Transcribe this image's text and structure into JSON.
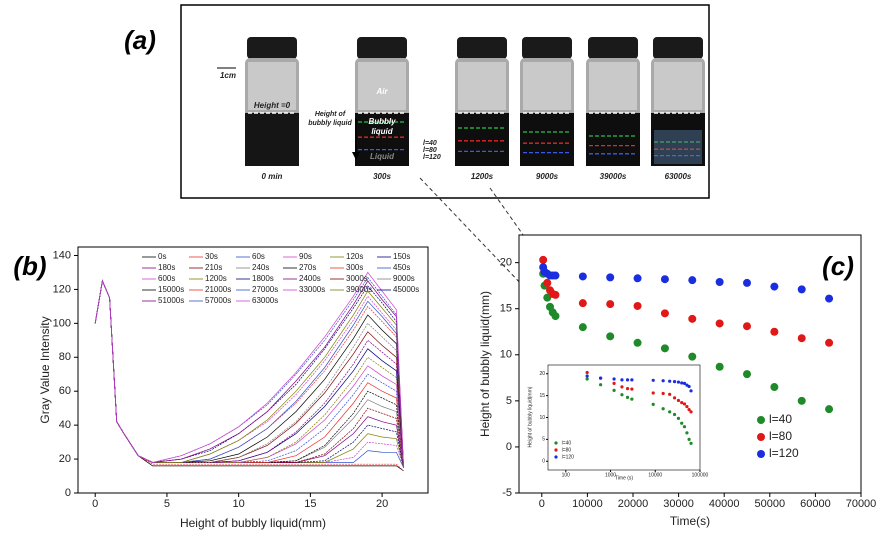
{
  "panel_a": {
    "label": "(a)",
    "scale": "1cm",
    "zero": "Height =0",
    "height_label": [
      "Height of",
      "bubbly liquid"
    ],
    "air": "Air",
    "bubbly": [
      "Bubbly",
      "liquid"
    ],
    "liquid": "Liquid",
    "levels": [
      "l=40",
      "l=80",
      "l=120"
    ],
    "captions": [
      "0 min",
      "300s",
      "1200s",
      "9000s",
      "39000s",
      "63000s"
    ]
  },
  "chart_data": [
    {
      "type": "line",
      "label": "(b)",
      "xlabel": "Height of bubbly liquid(mm)",
      "ylabel": "Gray Value Intensity",
      "x": [
        0,
        0.5,
        1,
        1.5,
        2,
        3,
        4,
        6,
        8,
        10,
        12,
        14,
        16,
        18,
        19,
        20,
        21,
        21.5
      ],
      "xlim": [
        -1.2,
        23.2
      ],
      "xticks": [
        0,
        5,
        10,
        15,
        20
      ],
      "ylim": [
        0,
        145
      ],
      "yticks": [
        0,
        20,
        40,
        60,
        80,
        100,
        120,
        140
      ],
      "legend": "upper center",
      "series": [
        {
          "name": "0s",
          "color": "#000000",
          "values": [
            100,
            125,
            115,
            42,
            35,
            22,
            16,
            16,
            16,
            16,
            16,
            16,
            16,
            16,
            16,
            16,
            16,
            13
          ]
        },
        {
          "name": "30s",
          "color": "#e8312a",
          "values": [
            100,
            125,
            115,
            42,
            35,
            22,
            17,
            17,
            17,
            17,
            17,
            17,
            17,
            17,
            17,
            17,
            17,
            13
          ]
        },
        {
          "name": "60s",
          "color": "#3050d0",
          "values": [
            100,
            125,
            115,
            42,
            35,
            22,
            18,
            18,
            18,
            18,
            18,
            18,
            18,
            18,
            25,
            24,
            24,
            15
          ]
        },
        {
          "name": "90s",
          "color": "#d040d0",
          "values": [
            100,
            125,
            115,
            42,
            35,
            22,
            18,
            18,
            18,
            18,
            18,
            18,
            18,
            21,
            30,
            29,
            28,
            15
          ]
        },
        {
          "name": "120s",
          "color": "#808000",
          "values": [
            100,
            125,
            115,
            42,
            35,
            22,
            18,
            18,
            18,
            18,
            18,
            18,
            18,
            26,
            35,
            33,
            32,
            15
          ]
        },
        {
          "name": "150s",
          "color": "#000080",
          "values": [
            100,
            125,
            115,
            42,
            35,
            22,
            18,
            18,
            18,
            18,
            18,
            18,
            19,
            30,
            40,
            38,
            36,
            15
          ]
        },
        {
          "name": "180s",
          "color": "#800080",
          "values": [
            100,
            125,
            115,
            42,
            35,
            22,
            18,
            18,
            18,
            18,
            18,
            18,
            22,
            35,
            45,
            42,
            40,
            15
          ]
        },
        {
          "name": "210s",
          "color": "#800000",
          "values": [
            100,
            125,
            115,
            42,
            35,
            22,
            18,
            18,
            18,
            18,
            18,
            18,
            23,
            38,
            50,
            47,
            44,
            15
          ]
        },
        {
          "name": "240s",
          "color": "#808080",
          "values": [
            100,
            125,
            115,
            42,
            35,
            22,
            18,
            18,
            18,
            18,
            18,
            19,
            27,
            44,
            55,
            51,
            48,
            15
          ]
        },
        {
          "name": "270s",
          "color": "#000000",
          "values": [
            100,
            125,
            115,
            42,
            35,
            22,
            18,
            18,
            18,
            18,
            18,
            19,
            28,
            47,
            60,
            56,
            52,
            15
          ]
        },
        {
          "name": "300s",
          "color": "#e8312a",
          "values": [
            100,
            125,
            115,
            42,
            35,
            22,
            18,
            18,
            18,
            18,
            18,
            22,
            33,
            53,
            65,
            60,
            56,
            15
          ]
        },
        {
          "name": "450s",
          "color": "#3050d0",
          "values": [
            100,
            125,
            115,
            42,
            35,
            22,
            18,
            18,
            18,
            18,
            19,
            25,
            38,
            58,
            70,
            65,
            60,
            15
          ]
        },
        {
          "name": "600s",
          "color": "#d040d0",
          "values": [
            100,
            125,
            115,
            42,
            35,
            22,
            18,
            18,
            18,
            18,
            21,
            29,
            43,
            63,
            75,
            69,
            64,
            15
          ]
        },
        {
          "name": "1200s",
          "color": "#808000",
          "values": [
            100,
            125,
            115,
            42,
            35,
            22,
            18,
            18,
            18,
            18,
            21,
            30,
            46,
            67,
            80,
            74,
            68,
            15
          ]
        },
        {
          "name": "1800s",
          "color": "#000080",
          "values": [
            100,
            125,
            115,
            42,
            35,
            22,
            18,
            18,
            18,
            19,
            24,
            35,
            51,
            72,
            85,
            78,
            72,
            15
          ]
        },
        {
          "name": "2400s",
          "color": "#800080",
          "values": [
            100,
            125,
            115,
            42,
            35,
            22,
            18,
            18,
            18,
            19,
            24,
            36,
            53,
            76,
            90,
            83,
            76,
            15
          ]
        },
        {
          "name": "3000s",
          "color": "#800000",
          "values": [
            100,
            125,
            115,
            42,
            35,
            22,
            18,
            18,
            18,
            21,
            28,
            41,
            59,
            82,
            95,
            87,
            80,
            15
          ]
        },
        {
          "name": "9000s",
          "color": "#808080",
          "values": [
            100,
            125,
            115,
            42,
            35,
            22,
            18,
            18,
            18,
            21,
            29,
            42,
            61,
            86,
            100,
            92,
            84,
            15
          ]
        },
        {
          "name": "15000s",
          "color": "#000000",
          "values": [
            100,
            125,
            115,
            42,
            35,
            22,
            18,
            18,
            19,
            23,
            33,
            48,
            67,
            91,
            105,
            96,
            88,
            15
          ]
        },
        {
          "name": "21000s",
          "color": "#e8312a",
          "values": [
            100,
            125,
            115,
            42,
            35,
            22,
            18,
            18,
            20,
            27,
            38,
            53,
            72,
            96,
            110,
            101,
            92,
            15
          ]
        },
        {
          "name": "27000s",
          "color": "#3050d0",
          "values": [
            100,
            125,
            115,
            42,
            35,
            22,
            18,
            18,
            20,
            27,
            38,
            54,
            74,
            99,
            113,
            104,
            94,
            15
          ]
        },
        {
          "name": "33000s",
          "color": "#d040d0",
          "values": [
            100,
            125,
            115,
            42,
            35,
            22,
            18,
            18,
            23,
            31,
            42,
            58,
            78,
            102,
            116,
            106,
            96,
            15
          ]
        },
        {
          "name": "39000s",
          "color": "#808000",
          "values": [
            100,
            125,
            115,
            42,
            35,
            22,
            18,
            18,
            23,
            31,
            43,
            60,
            80,
            105,
            119,
            109,
            99,
            15
          ]
        },
        {
          "name": "45000s",
          "color": "#000080",
          "values": [
            100,
            125,
            115,
            42,
            35,
            22,
            18,
            20,
            25,
            35,
            48,
            64,
            85,
            109,
            122,
            112,
            101,
            15
          ]
        },
        {
          "name": "51000s",
          "color": "#800080",
          "values": [
            100,
            125,
            115,
            42,
            35,
            22,
            18,
            20,
            26,
            35,
            48,
            66,
            86,
            111,
            125,
            114,
            104,
            15
          ]
        },
        {
          "name": "57000s",
          "color": "#3050d0",
          "values": [
            100,
            125,
            115,
            42,
            35,
            22,
            18,
            22,
            29,
            39,
            52,
            70,
            90,
            114,
            127,
            116,
            105,
            15
          ]
        },
        {
          "name": "63000s",
          "color": "#d040d0",
          "values": [
            100,
            125,
            115,
            42,
            35,
            22,
            18,
            22,
            29,
            39,
            53,
            71,
            92,
            116,
            130,
            119,
            108,
            15
          ]
        }
      ]
    },
    {
      "type": "scatter",
      "label": "(c)",
      "xlabel": "Time(s)",
      "ylabel": "Height of bubbly liquid(mm)",
      "x": [
        300,
        600,
        1200,
        1800,
        2400,
        3000,
        9000,
        15000,
        21000,
        27000,
        33000,
        39000,
        45000,
        51000,
        57000,
        63000
      ],
      "xlim": [
        -5000,
        70000
      ],
      "xticks": [
        0,
        10000,
        20000,
        30000,
        40000,
        50000,
        60000,
        70000
      ],
      "ylim": [
        -5,
        23
      ],
      "yticks": [
        -5,
        0,
        5,
        10,
        15,
        20
      ],
      "legend": "lower right",
      "series": [
        {
          "name": "l=40",
          "color": "#1f8a2a",
          "values": [
            18.8,
            17.5,
            16.2,
            15.2,
            14.6,
            14.2,
            13.0,
            12.0,
            11.3,
            10.7,
            9.8,
            8.7,
            7.9,
            6.5,
            5.0,
            4.1
          ]
        },
        {
          "name": "l=80",
          "color": "#e01818",
          "values": [
            20.3,
            19.0,
            17.8,
            17.0,
            16.6,
            16.5,
            15.6,
            15.5,
            15.3,
            14.5,
            13.9,
            13.4,
            13.1,
            12.5,
            11.8,
            11.3
          ]
        },
        {
          "name": "l=120",
          "color": "#1a2ee0",
          "values": [
            19.5,
            19.0,
            18.8,
            18.6,
            18.6,
            18.6,
            18.5,
            18.4,
            18.3,
            18.2,
            18.1,
            17.9,
            17.8,
            17.4,
            17.1,
            16.1
          ]
        }
      ]
    },
    {
      "type": "scatter",
      "log_x": true,
      "xlabel": "Time (s)",
      "ylabel": "Height of bubbly liquid(mm)",
      "x": [
        300,
        600,
        1200,
        1800,
        2400,
        3000,
        9000,
        15000,
        21000,
        27000,
        33000,
        39000,
        45000,
        51000,
        57000,
        63000
      ],
      "xlim": [
        40,
        100000
      ],
      "xticks": [
        100,
        1000,
        10000,
        100000
      ],
      "ylim": [
        -2,
        22
      ],
      "yticks": [
        0,
        5,
        10,
        15,
        20
      ],
      "legend": "lower left",
      "series": [
        {
          "name": "l=40",
          "color": "#1f8a2a",
          "values": [
            18.8,
            17.5,
            16.2,
            15.2,
            14.6,
            14.2,
            13.0,
            12.0,
            11.3,
            10.7,
            9.8,
            8.7,
            7.9,
            6.5,
            5.0,
            4.1
          ]
        },
        {
          "name": "l=80",
          "color": "#e01818",
          "values": [
            20.3,
            19.0,
            17.8,
            17.0,
            16.6,
            16.5,
            15.6,
            15.5,
            15.3,
            14.5,
            13.9,
            13.4,
            13.1,
            12.5,
            11.8,
            11.3
          ]
        },
        {
          "name": "l=120",
          "color": "#1a2ee0",
          "values": [
            19.5,
            19.0,
            18.8,
            18.6,
            18.6,
            18.6,
            18.5,
            18.4,
            18.3,
            18.2,
            18.1,
            17.9,
            17.8,
            17.4,
            17.1,
            16.1
          ]
        }
      ]
    }
  ]
}
